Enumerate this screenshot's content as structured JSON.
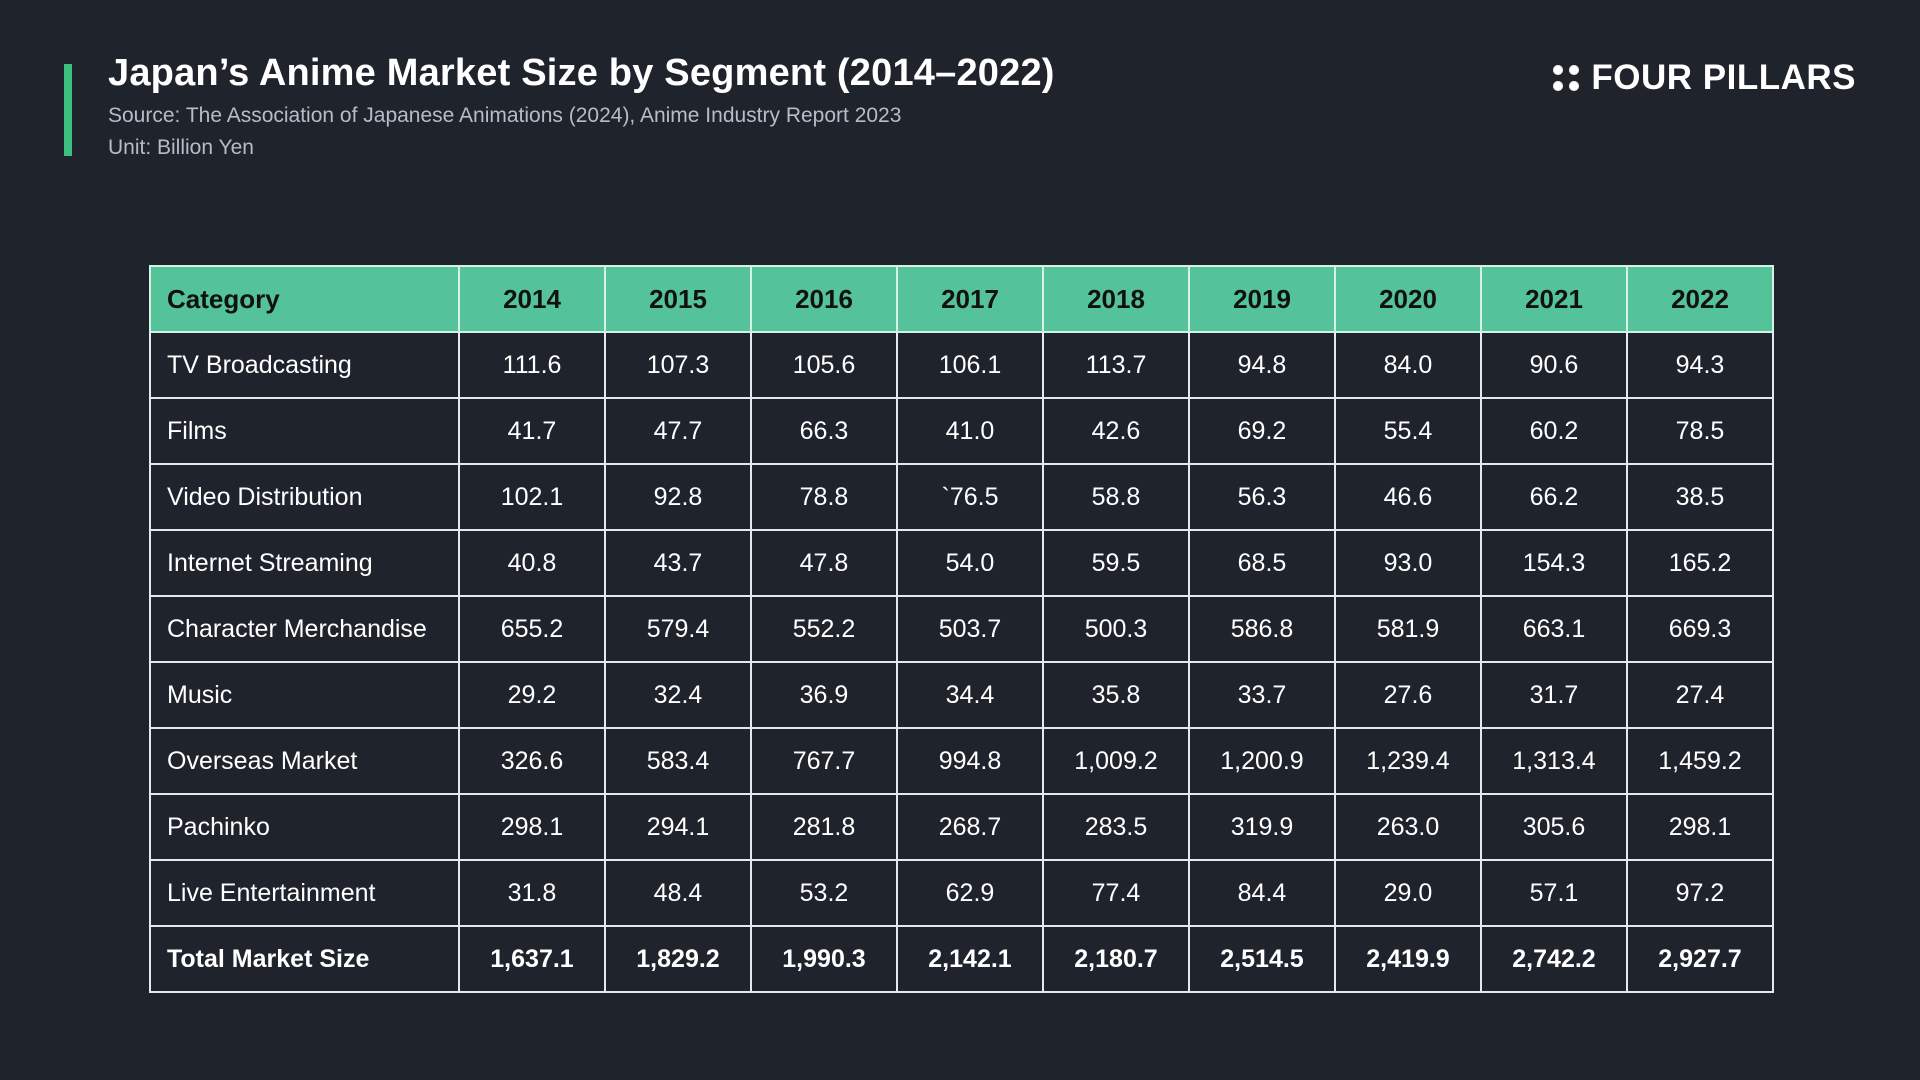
{
  "header": {
    "title": "Japan’s Anime Market Size by Segment (2014–2022)",
    "source": "Source: The Association of Japanese Animations (2024), Anime Industry Report 2023",
    "unit": "Unit: Billion Yen"
  },
  "logo": {
    "icon": "four-dots-icon",
    "text": "FOUR PILLARS"
  },
  "colors": {
    "background": "#1f232c",
    "accent": "#3fbf7f",
    "header_fill": "#54c39a"
  },
  "chart_data": {
    "type": "table",
    "title": "Japan’s Anime Market Size by Segment (2014–2022)",
    "columns": [
      "Category",
      "2014",
      "2015",
      "2016",
      "2017",
      "2018",
      "2019",
      "2020",
      "2021",
      "2022"
    ],
    "rows": [
      [
        "TV Broadcasting",
        "111.6",
        "107.3",
        "105.6",
        "106.1",
        "113.7",
        "94.8",
        "84.0",
        "90.6",
        "94.3"
      ],
      [
        "Films",
        "41.7",
        "47.7",
        "66.3",
        "41.0",
        "42.6",
        "69.2",
        "55.4",
        "60.2",
        "78.5"
      ],
      [
        "Video Distribution",
        "102.1",
        "92.8",
        "78.8",
        "`76.5",
        "58.8",
        "56.3",
        "46.6",
        "66.2",
        "38.5"
      ],
      [
        "Internet Streaming",
        "40.8",
        "43.7",
        "47.8",
        "54.0",
        "59.5",
        "68.5",
        "93.0",
        "154.3",
        "165.2"
      ],
      [
        "Character Merchandise",
        "655.2",
        "579.4",
        "552.2",
        "503.7",
        "500.3",
        "586.8",
        "581.9",
        "663.1",
        "669.3"
      ],
      [
        "Music",
        "29.2",
        "32.4",
        "36.9",
        "34.4",
        "35.8",
        "33.7",
        "27.6",
        "31.7",
        "27.4"
      ],
      [
        "Overseas Market",
        "326.6",
        "583.4",
        "767.7",
        "994.8",
        "1,009.2",
        "1,200.9",
        "1,239.4",
        "1,313.4",
        "1,459.2"
      ],
      [
        "Pachinko",
        "298.1",
        "294.1",
        "281.8",
        "268.7",
        "283.5",
        "319.9",
        "263.0",
        "305.6",
        "298.1"
      ],
      [
        "Live Entertainment",
        "31.8",
        "48.4",
        "53.2",
        "62.9",
        "77.4",
        "84.4",
        "29.0",
        "57.1",
        "97.2"
      ]
    ],
    "total": [
      "Total Market Size",
      "1,637.1",
      "1,829.2",
      "1,990.3",
      "2,142.1",
      "2,180.7",
      "2,514.5",
      "2,419.9",
      "2,742.2",
      "2,927.7"
    ]
  }
}
